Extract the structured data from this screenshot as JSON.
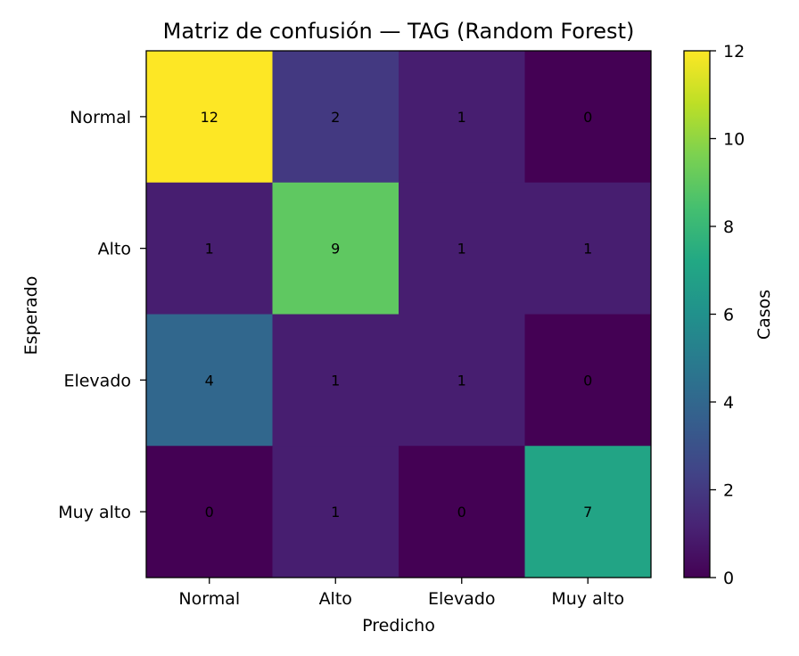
{
  "chart_data": {
    "type": "heatmap",
    "title": "Matriz de confusión — TAG (Random Forest)",
    "xlabel": "Predicho",
    "ylabel": "Esperado",
    "x_categories": [
      "Normal",
      "Alto",
      "Elevado",
      "Muy alto"
    ],
    "y_categories": [
      "Normal",
      "Alto",
      "Elevado",
      "Muy alto"
    ],
    "matrix": [
      [
        12,
        2,
        1,
        0
      ],
      [
        1,
        9,
        1,
        1
      ],
      [
        4,
        1,
        1,
        0
      ],
      [
        0,
        1,
        0,
        7
      ]
    ],
    "colorbar": {
      "label": "Casos",
      "range": [
        0,
        12
      ],
      "ticks": [
        0,
        2,
        4,
        6,
        8,
        10,
        12
      ],
      "colormap": "viridis"
    }
  }
}
